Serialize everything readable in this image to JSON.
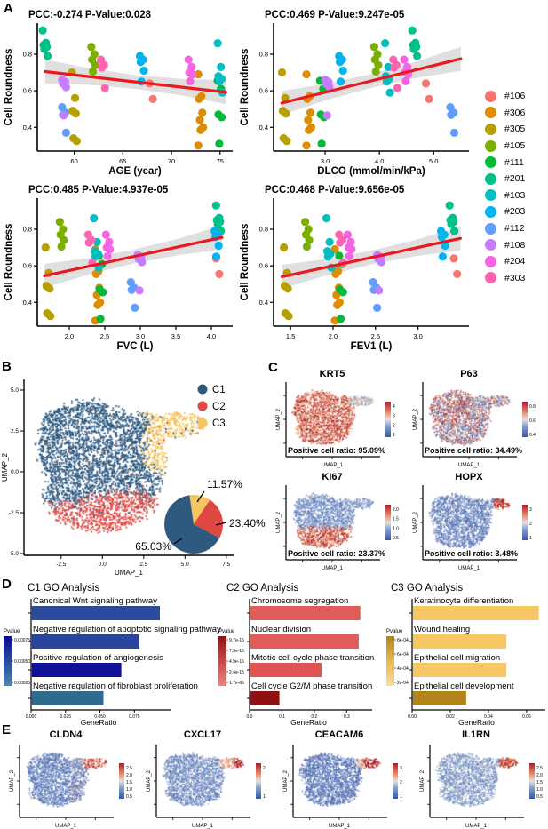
{
  "labels": {
    "a": "A",
    "b": "B",
    "c": "C",
    "d": "D",
    "e": "E"
  },
  "chart_data": {
    "panelA": {
      "type": "scatter",
      "ylabel": "Cell Roundness",
      "ylim": [
        0.27,
        0.97
      ],
      "yticks": [
        "0.4",
        "0.6",
        "0.8"
      ],
      "ytick_vals": [
        0.4,
        0.6,
        0.8
      ],
      "trend_color": "#E8191F",
      "band_color": "#D9D9D9",
      "plots": [
        {
          "key": "age",
          "title": "PCC:-0.274 P-Value:0.028",
          "xlabel": "AGE (year)",
          "xlim": [
            56.2,
            76.3
          ],
          "xticks": [
            "60",
            "65",
            "70",
            "75"
          ],
          "xtick_vals": [
            60,
            65,
            70,
            75
          ],
          "trend": {
            "x": [
              57.0,
              75.6
            ],
            "y": [
              0.705,
              0.592
            ]
          }
        },
        {
          "key": "dlco",
          "title": "PCC:0.469 P-Value:9.247e-05",
          "xlabel": "DLCO (mmol/min/kPa)",
          "xlim": [
            2.05,
            5.65
          ],
          "xticks": [
            "3.0",
            "4.0",
            "5.0"
          ],
          "xtick_vals": [
            3.0,
            4.0,
            5.0
          ],
          "trend": {
            "x": [
              2.2,
              5.5
            ],
            "y": [
              0.533,
              0.775
            ]
          }
        },
        {
          "key": "fvc",
          "title": "PCC:0.485 P-Value:4.937e-05",
          "xlabel": "FVC (L)",
          "xlim": [
            1.55,
            4.3
          ],
          "xticks": [
            "2.0",
            "2.5",
            "3.0",
            "3.5",
            "4.0"
          ],
          "xtick_vals": [
            2.0,
            2.5,
            3.0,
            3.5,
            4.0
          ],
          "trend": {
            "x": [
              1.65,
              4.15
            ],
            "y": [
              0.545,
              0.755
            ]
          }
        },
        {
          "key": "fev1",
          "title": "PCC:0.468 P-Value:9.656e-05",
          "xlabel": "FEV1 (L)",
          "xlim": [
            1.3,
            3.6
          ],
          "xticks": [
            "1.5",
            "2.0",
            "2.5",
            "3.0"
          ],
          "xtick_vals": [
            1.5,
            2.0,
            2.5,
            3.0
          ],
          "trend": {
            "x": [
              1.4,
              3.5
            ],
            "y": [
              0.54,
              0.75
            ]
          }
        }
      ],
      "samples": [
        {
          "id": "#106",
          "color": "#F8766D",
          "age": 68,
          "dlco": 4.9,
          "fvc": 4.1,
          "fev1": 3.45,
          "roundness": [
            0.64,
            0.555
          ]
        },
        {
          "id": "#306",
          "color": "#DE8C00",
          "age": 73,
          "dlco": 2.7,
          "fvc": 2.4,
          "fev1": 2.05,
          "roundness": [
            0.69,
            0.57,
            0.555,
            0.48,
            0.44,
            0.4,
            0.385,
            0.3
          ]
        },
        {
          "id": "#305",
          "color": "#B79F00",
          "age": 60,
          "dlco": 2.25,
          "fvc": 1.7,
          "fev1": 1.45,
          "roundness": [
            0.7,
            0.56,
            0.49,
            0.475,
            0.34,
            0.325
          ]
        },
        {
          "id": "#105",
          "color": "#7CAE00",
          "age": 62,
          "dlco": 3.95,
          "fvc": 1.9,
          "fev1": 1.7,
          "roundness": [
            0.84,
            0.8,
            0.77,
            0.74,
            0.705
          ]
        },
        {
          "id": "#111",
          "color": "#00BA38",
          "age": 75,
          "dlco": 2.95,
          "fvc": 2.45,
          "fev1": 2.1,
          "roundness": [
            0.655,
            0.61,
            0.47,
            0.455,
            0.31
          ]
        },
        {
          "id": "#201",
          "color": "#00C08B",
          "age": 57,
          "dlco": 4.65,
          "fvc": 4.1,
          "fev1": 3.4,
          "roundness": [
            0.93,
            0.862,
            0.85,
            0.84,
            0.828,
            0.79
          ]
        },
        {
          "id": "#103",
          "color": "#00BFC4",
          "age": 75,
          "dlco": 4.15,
          "fvc": 2.38,
          "fev1": 1.95,
          "roundness": [
            0.86,
            0.73,
            0.68,
            0.665,
            0.65,
            0.59
          ]
        },
        {
          "id": "#203",
          "color": "#00B4F0",
          "age": 67,
          "dlco": 3.3,
          "fvc": 4.08,
          "fev1": 3.3,
          "roundness": [
            0.79,
            0.77,
            0.757,
            0.71,
            0.65
          ]
        },
        {
          "id": "#112",
          "color": "#619CFF",
          "age": 59,
          "dlco": 5.35,
          "fvc": 2.9,
          "fev1": 2.5,
          "roundness": [
            0.51,
            0.48,
            0.468,
            0.37
          ]
        },
        {
          "id": "#108",
          "color": "#C77CFF",
          "age": 59,
          "dlco": 3.05,
          "fvc": 3.0,
          "fev1": 2.55,
          "roundness": [
            0.66,
            0.648,
            0.638,
            0.62,
            0.465
          ]
        },
        {
          "id": "#204",
          "color": "#F564E3",
          "age": 72,
          "dlco": 4.5,
          "fvc": 2.55,
          "fev1": 2.2,
          "roundness": [
            0.77,
            0.73,
            0.7,
            0.69,
            0.652
          ]
        },
        {
          "id": "#303",
          "color": "#FF64B0",
          "age": 63,
          "dlco": 4.3,
          "fvc": 2.3,
          "fev1": 2.1,
          "roundness": [
            0.77,
            0.74,
            0.727,
            0.615
          ]
        }
      ]
    },
    "panelB": {
      "type": "scatter-umap",
      "xlabel": "UMAP_1",
      "ylabel": "UMAP_2",
      "xticks": [
        "-2.5",
        "0.0",
        "2.5",
        "5.0",
        "7.5"
      ],
      "yticks": [
        "5.0",
        "2.5",
        "0.0",
        "-2.5",
        "-5.0"
      ],
      "clusters": [
        {
          "name": "C1",
          "color": "#2E5A80",
          "pct": 65.03,
          "pct_label": "65.03%"
        },
        {
          "name": "C2",
          "color": "#DF4742",
          "pct": 23.4,
          "pct_label": "23.40%"
        },
        {
          "name": "C3",
          "color": "#F6C45F",
          "pct": 11.57,
          "pct_label": "11.57%"
        }
      ]
    },
    "panelC": {
      "type": "feature-umap",
      "xlabel": "UMAP_1",
      "ylabel": "UMAP_2",
      "plots": [
        {
          "gene": "KRT5",
          "ratio_label": "Positive cell ratio: 95.09%",
          "pattern": "krt5",
          "colorbar_ticks": [
            "4",
            "3",
            "2",
            "1"
          ]
        },
        {
          "gene": "P63",
          "ratio_label": "Positive cell ratio: 34.49%",
          "pattern": "p63",
          "colorbar_ticks": [
            "0.8",
            "0.6",
            "0.4"
          ]
        },
        {
          "gene": "KI67",
          "ratio_label": "Positive cell ratio: 23.37%",
          "pattern": "ki67",
          "colorbar_ticks": [
            "2.0",
            "1.5",
            "1.0",
            "0.5"
          ]
        },
        {
          "gene": "HOPX",
          "ratio_label": "Positive cell ratio: 3.48%",
          "pattern": "hopx",
          "colorbar_ticks": [
            "3",
            "2",
            "1"
          ]
        }
      ]
    },
    "panelD": {
      "type": "bar",
      "xlabel": "GeneRatio",
      "legend_title": "Pvalue",
      "charts": [
        {
          "title": "C1 GO Analysis",
          "xticks": [
            "0.000",
            "0.025",
            "0.050",
            "0.075"
          ],
          "xtick_vals": [
            0,
            0.025,
            0.05,
            0.075
          ],
          "xmax": 0.098,
          "legend_ticks": [
            "0.00075",
            "0.00050",
            "0.00025"
          ],
          "legend_gradient": [
            "#0B0B8F",
            "#2B4B9D",
            "#4E86B0"
          ],
          "bars": [
            {
              "label": "Canonical Wnt signaling pathway",
              "value": 0.093,
              "color": "#2B4B9D"
            },
            {
              "label": "Negative regulation of apoptotic signaling pathway",
              "value": 0.078,
              "color": "#2A459B"
            },
            {
              "label": "Positive regulation of angiogenesis",
              "value": 0.065,
              "color": "#10109A"
            },
            {
              "label": "Negative regulation of fibroblast proliferation",
              "value": 0.052,
              "color": "#2E6B8F"
            }
          ]
        },
        {
          "title": "C2 GO Analysis",
          "xticks": [
            "0.0",
            "0.1",
            "0.2",
            "0.3"
          ],
          "xtick_vals": [
            0,
            0.1,
            0.2,
            0.3
          ],
          "xmax": 0.365,
          "legend_ticks": [
            "9.7e-15",
            "7.3e-15",
            "4.9e-15",
            "2.4e-15",
            "1.7e-65"
          ],
          "legend_gradient": [
            "#8B1414",
            "#C84848",
            "#E88585"
          ],
          "bars": [
            {
              "label": "Chromosome segregation",
              "value": 0.34,
              "color": "#E25B5B"
            },
            {
              "label": "Nuclear division",
              "value": 0.335,
              "color": "#E25B5B"
            },
            {
              "label": "Mitotic cell cycle phase transition",
              "value": 0.22,
              "color": "#E05454"
            },
            {
              "label": "Cell cycle G2/M phase transition",
              "value": 0.09,
              "color": "#8F1111"
            }
          ]
        },
        {
          "title": "C3 GO Analysis",
          "xticks": [
            "0.00",
            "0.02",
            "0.04",
            "0.06"
          ],
          "xtick_vals": [
            0,
            0.02,
            0.04,
            0.06
          ],
          "xmax": 0.0675,
          "legend_ticks": [
            "8e-04",
            "6e-04",
            "4e-04",
            "2e-04"
          ],
          "legend_gradient": [
            "#B08419",
            "#E8BC4F",
            "#F8DF9F"
          ],
          "bars": [
            {
              "label": "Keratinocyte differentiation",
              "value": 0.066,
              "color": "#F7C766"
            },
            {
              "label": "Wound healing",
              "value": 0.049,
              "color": "#F7C766"
            },
            {
              "label": "Epithelial cell migration",
              "value": 0.049,
              "color": "#F7C766"
            },
            {
              "label": "Epithelial cell development",
              "value": 0.028,
              "color": "#B08419"
            }
          ]
        }
      ]
    },
    "panelE": {
      "type": "feature-umap",
      "xlabel": "UMAP_1",
      "ylabel": "UMAP_2",
      "plots": [
        {
          "gene": "CLDN4",
          "pattern": "cldn4",
          "colorbar_ticks": [
            "2.5",
            "2.0",
            "1.5",
            "1.0",
            "0.5"
          ]
        },
        {
          "gene": "CXCL17",
          "pattern": "cxcl17",
          "colorbar_ticks": [
            "2",
            "1"
          ]
        },
        {
          "gene": "CEACAM6",
          "pattern": "ceacam6",
          "colorbar_ticks": [
            "3",
            "2",
            "1"
          ]
        },
        {
          "gene": "IL1RN",
          "pattern": "il1rn",
          "colorbar_ticks": [
            "2.5",
            "2.0",
            "1.5",
            "1.0",
            "0.5"
          ]
        }
      ]
    }
  }
}
